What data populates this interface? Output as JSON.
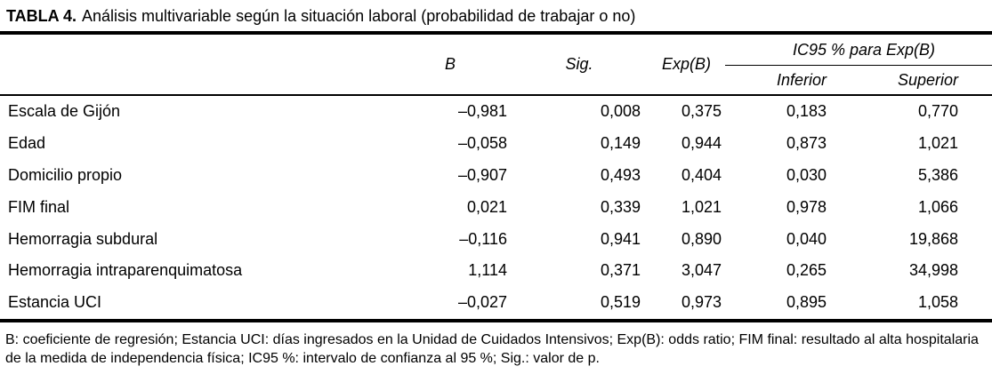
{
  "table": {
    "title_label": "TABLA 4.",
    "title_text": "Análisis multivariable según la situación laboral (probabilidad de trabajar o no)",
    "columns": {
      "b": "B",
      "sig": "Sig.",
      "expb": "Exp(B)",
      "ic_span": "IC95 % para Exp(B)",
      "inferior": "Inferior",
      "superior": "Superior"
    },
    "rows": [
      {
        "label": "Escala de Gijón",
        "b": "–0,981",
        "sig": "0,008",
        "expb": "0,375",
        "inferior": "0,183",
        "superior": "0,770"
      },
      {
        "label": "Edad",
        "b": "–0,058",
        "sig": "0,149",
        "expb": "0,944",
        "inferior": "0,873",
        "superior": "1,021"
      },
      {
        "label": "Domicilio propio",
        "b": "–0,907",
        "sig": "0,493",
        "expb": "0,404",
        "inferior": "0,030",
        "superior": "5,386"
      },
      {
        "label": "FIM final",
        "b": "0,021",
        "sig": "0,339",
        "expb": "1,021",
        "inferior": "0,978",
        "superior": "1,066"
      },
      {
        "label": "Hemorragia subdural",
        "b": "–0,116",
        "sig": "0,941",
        "expb": "0,890",
        "inferior": "0,040",
        "superior": "19,868"
      },
      {
        "label": "Hemorragia intraparenquimatosa",
        "b": "1,114",
        "sig": "0,371",
        "expb": "3,047",
        "inferior": "0,265",
        "superior": "34,998"
      },
      {
        "label": "Estancia UCI",
        "b": "–0,027",
        "sig": "0,519",
        "expb": "0,973",
        "inferior": "0,895",
        "superior": "1,058"
      }
    ],
    "footnote": "B: coeficiente de regresión; Estancia UCI: días ingresados en la Unidad de Cuidados Intensivos; Exp(B): odds ratio; FIM final: resultado al alta hospitalaria de la medida de independencia física; IC95 %: intervalo de confianza al 95 %; Sig.: valor de p."
  },
  "colors": {
    "text": "#000000",
    "rule": "#000000",
    "background": "#ffffff"
  }
}
